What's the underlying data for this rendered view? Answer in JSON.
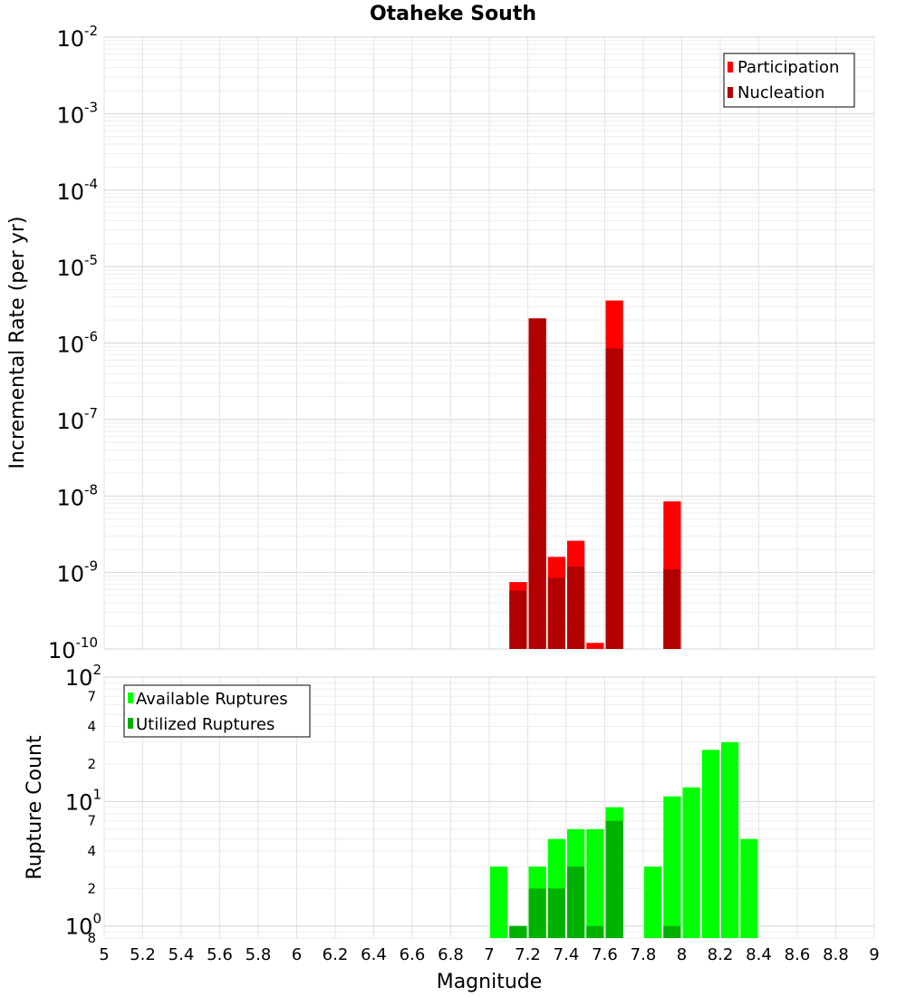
{
  "chart_data": [
    {
      "type": "bar",
      "title": "Otaheke South",
      "xlabel": "Magnitude",
      "ylabel": "Incremental Rate (per yr)",
      "yscale": "log",
      "ylim": [
        1e-10,
        0.01
      ],
      "xlim": [
        5,
        9
      ],
      "bin_width": 0.1,
      "grid": true,
      "legend_position": "top-right",
      "series": [
        {
          "name": "Participation",
          "color": "#ff0000",
          "x": [
            7.15,
            7.25,
            7.35,
            7.45,
            7.55,
            7.65,
            7.95
          ],
          "values": [
            7.5e-10,
            2.1e-06,
            1.6e-09,
            2.6e-09,
            1.2e-10,
            3.6e-06,
            8.5e-09
          ]
        },
        {
          "name": "Nucleation",
          "color": "#b20000",
          "x": [
            7.15,
            7.25,
            7.35,
            7.45,
            7.55,
            7.65,
            7.95
          ],
          "values": [
            5.8e-10,
            2.1e-06,
            8.5e-10,
            1.2e-09,
            1e-10,
            8.5e-07,
            1.1e-09
          ]
        }
      ]
    },
    {
      "type": "bar",
      "title": "",
      "xlabel": "Magnitude",
      "ylabel": "Rupture Count",
      "yscale": "log",
      "ylim": [
        0.8,
        100
      ],
      "xlim": [
        5,
        9
      ],
      "bin_width": 0.1,
      "grid": true,
      "legend_position": "top-left",
      "series": [
        {
          "name": "Available Ruptures",
          "color": "#00ff00",
          "x": [
            7.05,
            7.15,
            7.25,
            7.35,
            7.45,
            7.55,
            7.65,
            7.85,
            7.95,
            8.05,
            8.15,
            8.25,
            8.35
          ],
          "values": [
            3,
            1,
            3,
            5,
            6,
            6,
            9,
            3,
            11,
            13,
            26,
            30,
            5
          ]
        },
        {
          "name": "Utilized Ruptures",
          "color": "#00b200",
          "x": [
            7.15,
            7.25,
            7.35,
            7.45,
            7.55,
            7.65,
            7.95
          ],
          "values": [
            1,
            2,
            2,
            3,
            1,
            7,
            1
          ]
        }
      ]
    }
  ],
  "axis_text": {
    "top_y_ticks": [
      {
        "base": "10",
        "exp": "-2"
      },
      {
        "base": "10",
        "exp": "-3"
      },
      {
        "base": "10",
        "exp": "-4"
      },
      {
        "base": "10",
        "exp": "-5"
      },
      {
        "base": "10",
        "exp": "-6"
      },
      {
        "base": "10",
        "exp": "-7"
      },
      {
        "base": "10",
        "exp": "-8"
      },
      {
        "base": "10",
        "exp": "-9"
      },
      {
        "base": "10",
        "exp": "-10"
      }
    ],
    "bottom_y_ticks": [
      {
        "base": "10",
        "exp": "2"
      },
      {
        "base": "10",
        "exp": "1"
      },
      {
        "base": "10",
        "exp": "0"
      }
    ],
    "bottom_y_minor": [
      "7",
      "4",
      "2",
      "7",
      "4",
      "2",
      "8"
    ],
    "x_ticks": [
      "5",
      "5.2",
      "5.4",
      "5.6",
      "5.8",
      "6",
      "6.2",
      "6.4",
      "6.6",
      "6.8",
      "7",
      "7.2",
      "7.4",
      "7.6",
      "7.8",
      "8",
      "8.2",
      "8.4",
      "8.6",
      "8.8",
      "9"
    ]
  }
}
